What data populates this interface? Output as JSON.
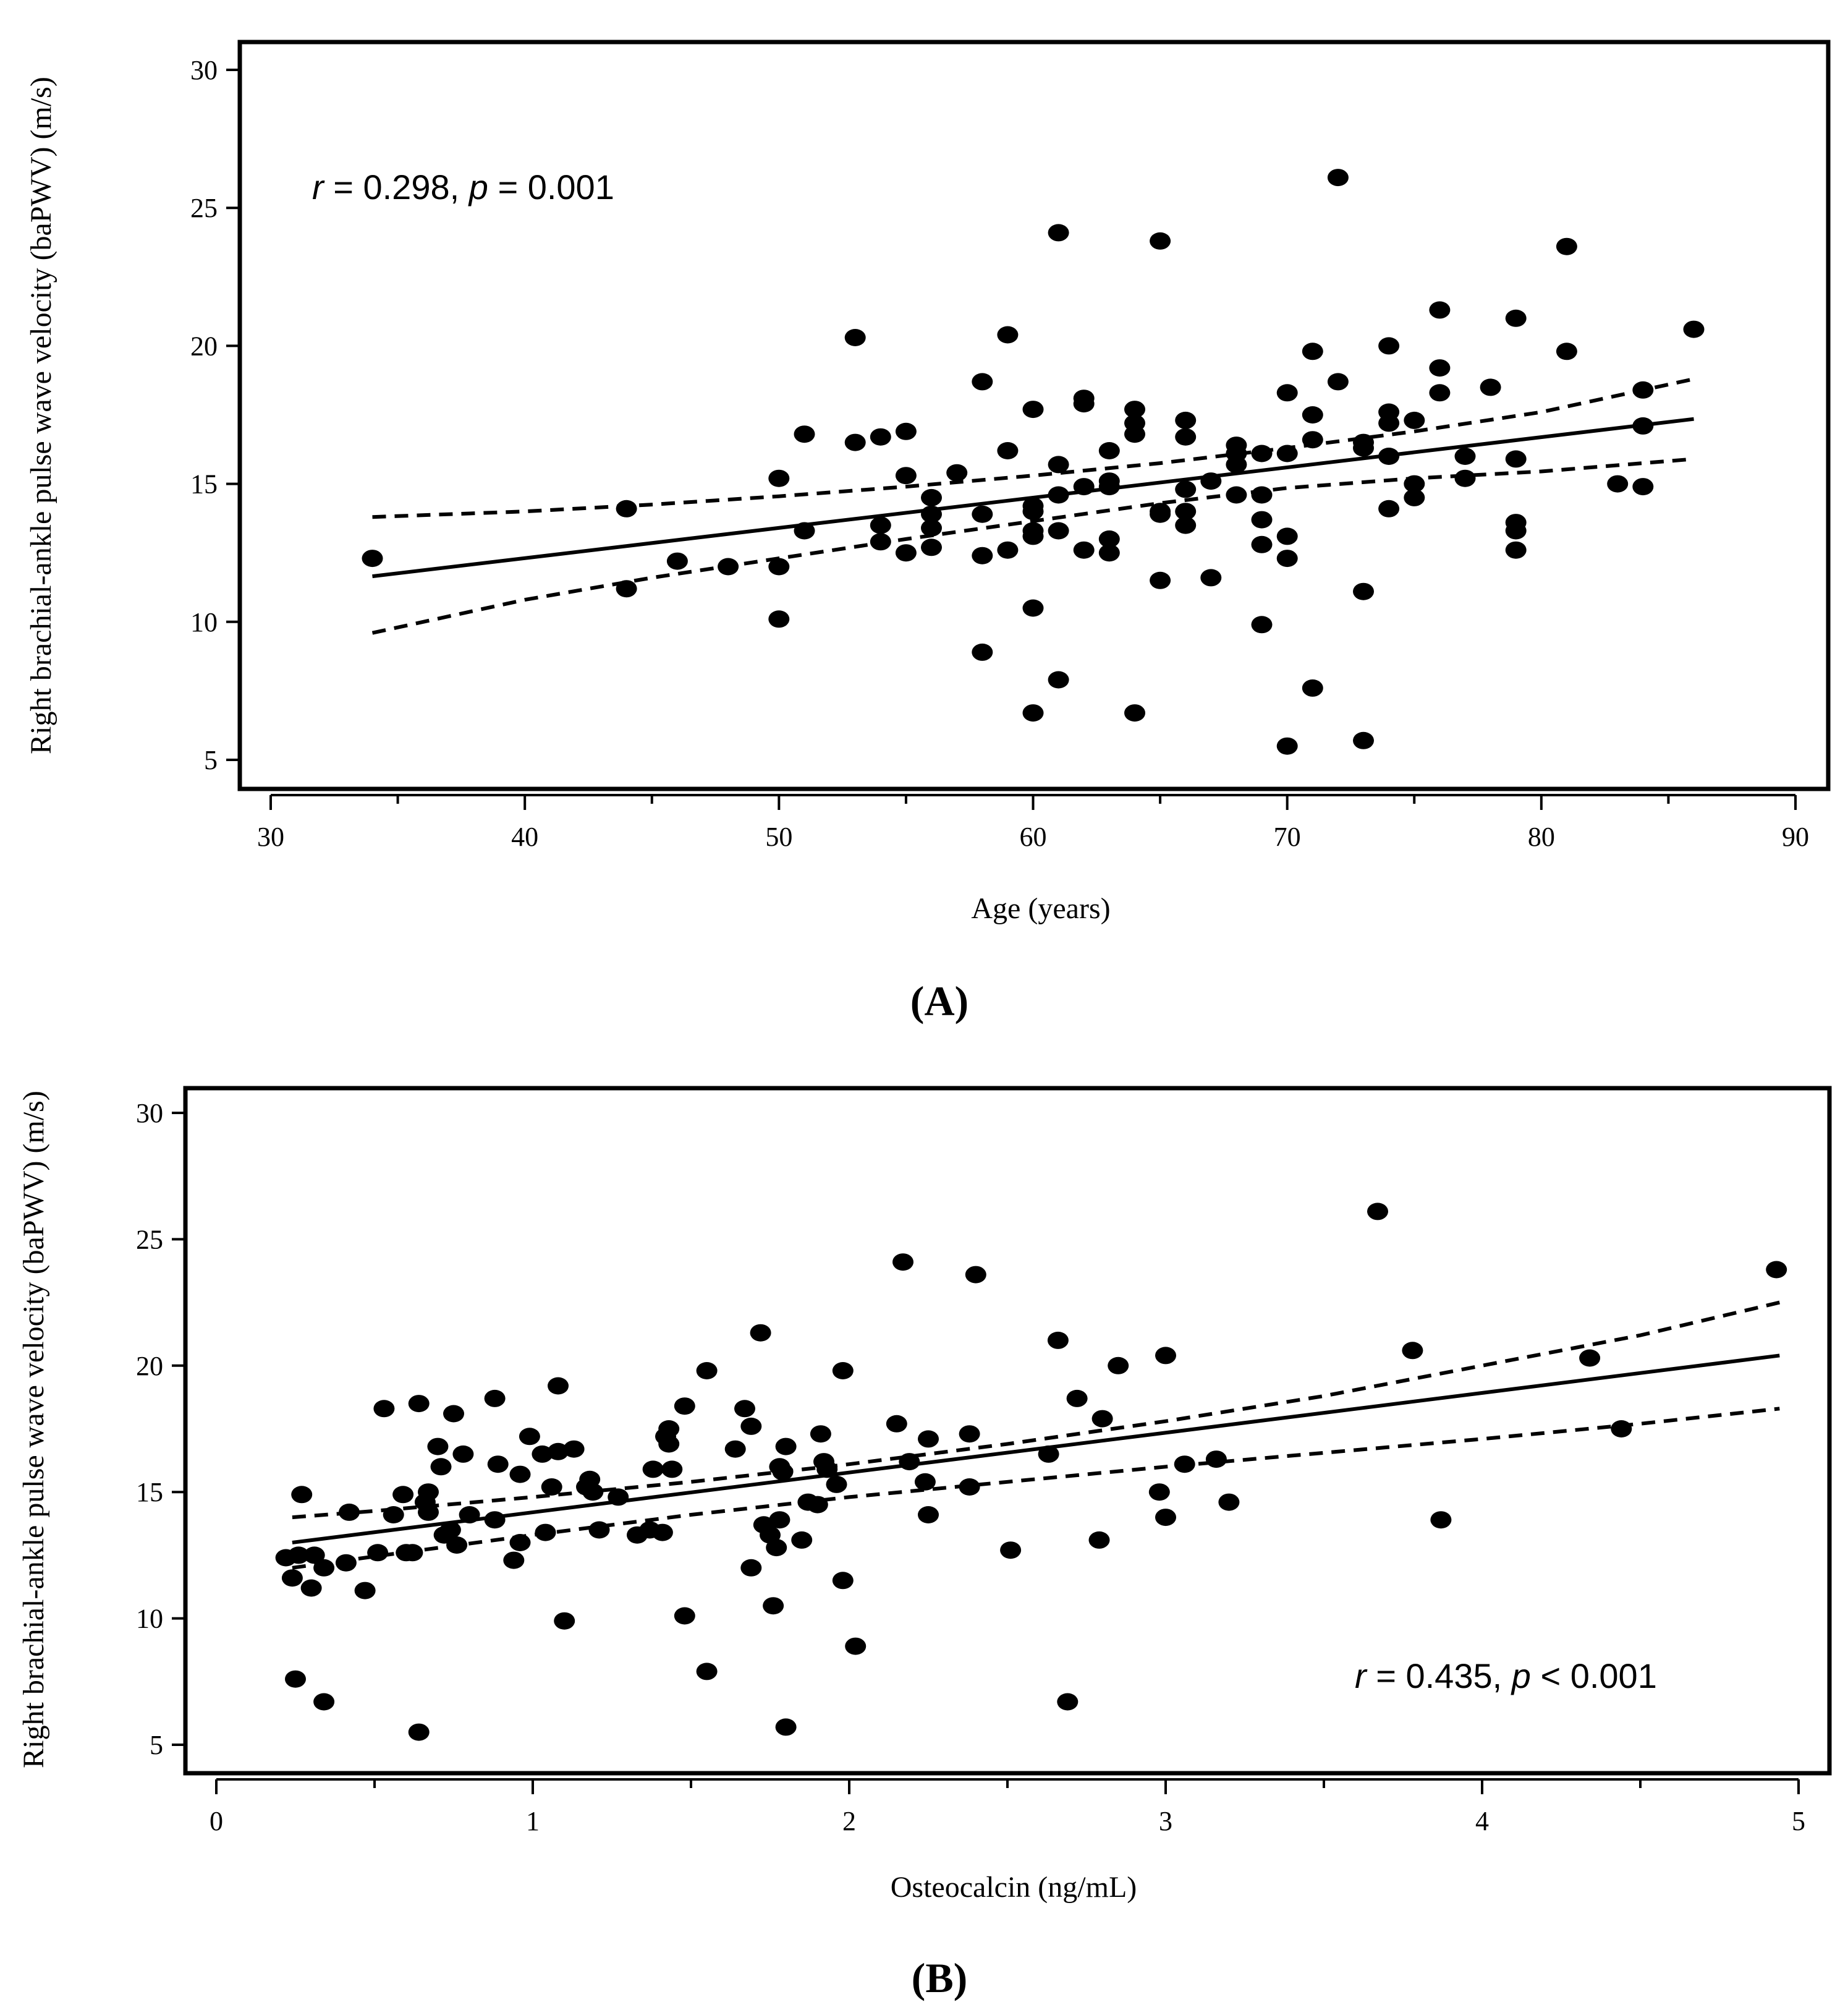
{
  "chart_data": [
    {
      "panel_label": "(A)",
      "type": "scatter",
      "title": "",
      "xlabel": "Age (years)",
      "ylabel": "Right brachial-ankle pulse wave velocity (baPWV) (m/s)",
      "xlim": [
        29,
        91
      ],
      "ylim": [
        4,
        31
      ],
      "xticks": [
        30,
        40,
        50,
        60,
        70,
        80,
        90
      ],
      "xticks_minor": [
        35,
        45,
        55,
        65,
        75,
        85
      ],
      "yticks": [
        5,
        10,
        15,
        20,
        25,
        30
      ],
      "grid": false,
      "annotation": {
        "r_symbol": "r",
        "r_text": " = 0.298, ",
        "p_symbol": "p",
        "p_text": " = 0.001",
        "placement": "top-left"
      },
      "regression": {
        "x": [
          34,
          86
        ],
        "y": [
          11.65,
          17.35
        ]
      },
      "ci_upper": {
        "x": [
          34,
          40,
          45,
          50,
          55,
          60,
          65,
          70,
          75,
          80,
          86
        ],
        "y": [
          13.8,
          14.0,
          14.25,
          14.55,
          14.9,
          15.3,
          15.75,
          16.3,
          16.9,
          17.6,
          18.8
        ]
      },
      "ci_lower": {
        "x": [
          34,
          40,
          45,
          50,
          55,
          60,
          65,
          70,
          75,
          80,
          86
        ],
        "y": [
          9.6,
          10.8,
          11.6,
          12.3,
          13.0,
          13.65,
          14.3,
          14.85,
          15.2,
          15.45,
          15.9
        ]
      },
      "points": [
        [
          34,
          12.3
        ],
        [
          44,
          14.1
        ],
        [
          44,
          11.2
        ],
        [
          46,
          12.2
        ],
        [
          48,
          12.0
        ],
        [
          50,
          15.2
        ],
        [
          50,
          12.0
        ],
        [
          50,
          10.1
        ],
        [
          51,
          16.8
        ],
        [
          51,
          13.3
        ],
        [
          53,
          20.3
        ],
        [
          53,
          16.5
        ],
        [
          54,
          16.7
        ],
        [
          54,
          13.5
        ],
        [
          54,
          12.9
        ],
        [
          55,
          16.9
        ],
        [
          55,
          15.3
        ],
        [
          55,
          12.5
        ],
        [
          56,
          14.5
        ],
        [
          56,
          13.9
        ],
        [
          56,
          13.4
        ],
        [
          56,
          12.7
        ],
        [
          57,
          15.4
        ],
        [
          58,
          18.7
        ],
        [
          58,
          13.9
        ],
        [
          58,
          12.4
        ],
        [
          58,
          8.9
        ],
        [
          59,
          20.4
        ],
        [
          59,
          16.2
        ],
        [
          59,
          12.6
        ],
        [
          60,
          17.7
        ],
        [
          60,
          14.2
        ],
        [
          60,
          14.0
        ],
        [
          60,
          13.3
        ],
        [
          60,
          13.1
        ],
        [
          60,
          10.5
        ],
        [
          60,
          6.7
        ],
        [
          61,
          24.1
        ],
        [
          61,
          15.7
        ],
        [
          61,
          14.6
        ],
        [
          61,
          13.3
        ],
        [
          61,
          7.9
        ],
        [
          62,
          18.1
        ],
        [
          62,
          17.9
        ],
        [
          62,
          14.9
        ],
        [
          62,
          12.6
        ],
        [
          63,
          16.2
        ],
        [
          63,
          15.1
        ],
        [
          63,
          14.9
        ],
        [
          63,
          13.0
        ],
        [
          63,
          12.5
        ],
        [
          64,
          17.7
        ],
        [
          64,
          17.2
        ],
        [
          64,
          16.8
        ],
        [
          64,
          6.7
        ],
        [
          65,
          23.8
        ],
        [
          65,
          14.0
        ],
        [
          65,
          13.9
        ],
        [
          65,
          11.5
        ],
        [
          66,
          17.3
        ],
        [
          66,
          16.7
        ],
        [
          66,
          14.8
        ],
        [
          66,
          14.0
        ],
        [
          66,
          13.5
        ],
        [
          67,
          15.1
        ],
        [
          67,
          11.6
        ],
        [
          68,
          16.4
        ],
        [
          68,
          16.1
        ],
        [
          68,
          15.7
        ],
        [
          68,
          14.6
        ],
        [
          69,
          16.1
        ],
        [
          69,
          14.6
        ],
        [
          69,
          13.7
        ],
        [
          69,
          12.8
        ],
        [
          69,
          9.9
        ],
        [
          70,
          18.3
        ],
        [
          70,
          16.1
        ],
        [
          70,
          13.1
        ],
        [
          70,
          12.3
        ],
        [
          70,
          5.5
        ],
        [
          71,
          19.8
        ],
        [
          71,
          17.5
        ],
        [
          71,
          16.6
        ],
        [
          71,
          7.6
        ],
        [
          72,
          26.1
        ],
        [
          72,
          18.7
        ],
        [
          73,
          16.5
        ],
        [
          73,
          16.3
        ],
        [
          73,
          11.1
        ],
        [
          73,
          5.7
        ],
        [
          74,
          20.0
        ],
        [
          74,
          17.6
        ],
        [
          74,
          17.2
        ],
        [
          74,
          16.0
        ],
        [
          74,
          14.1
        ],
        [
          75,
          17.3
        ],
        [
          75,
          15.0
        ],
        [
          75,
          14.5
        ],
        [
          76,
          21.3
        ],
        [
          76,
          19.2
        ],
        [
          76,
          18.3
        ],
        [
          77,
          16.0
        ],
        [
          77,
          15.2
        ],
        [
          78,
          18.5
        ],
        [
          79,
          21.0
        ],
        [
          79,
          15.9
        ],
        [
          79,
          13.6
        ],
        [
          79,
          13.3
        ],
        [
          79,
          12.6
        ],
        [
          81,
          23.6
        ],
        [
          81,
          19.8
        ],
        [
          83,
          15.0
        ],
        [
          84,
          18.4
        ],
        [
          84,
          17.1
        ],
        [
          84,
          14.9
        ],
        [
          86,
          20.6
        ]
      ]
    },
    {
      "panel_label": "(B)",
      "type": "scatter",
      "title": "",
      "xlabel": "Osteocalcin (ng/mL)",
      "ylabel": "Right brachial-ankle pulse wave velocity (baPWV) (m/s)",
      "xlim": [
        -0.1,
        5.1
      ],
      "ylim": [
        4,
        31
      ],
      "xticks": [
        0,
        1,
        2,
        3,
        4,
        5
      ],
      "xticks_minor": [
        0.5,
        1.5,
        2.5,
        3.5,
        4.5
      ],
      "yticks": [
        5,
        10,
        15,
        20,
        25,
        30
      ],
      "grid": false,
      "annotation": {
        "r_symbol": "r",
        "r_text": " = 0.435, ",
        "p_symbol": "p",
        "p_text": " < 0.001",
        "placement": "bottom-right"
      },
      "regression": {
        "x": [
          0.24,
          4.94
        ],
        "y": [
          13.0,
          20.4
        ]
      },
      "ci_upper": {
        "x": [
          0.24,
          0.5,
          1.0,
          1.5,
          2.0,
          2.5,
          3.0,
          3.5,
          4.0,
          4.5,
          4.94
        ],
        "y": [
          14.0,
          14.25,
          14.8,
          15.4,
          16.1,
          16.9,
          17.8,
          18.8,
          20.0,
          21.2,
          22.5
        ]
      },
      "ci_lower": {
        "x": [
          0.24,
          0.5,
          1.0,
          1.5,
          2.0,
          2.5,
          3.0,
          3.5,
          4.0,
          4.5,
          4.94
        ],
        "y": [
          12.0,
          12.45,
          13.3,
          14.1,
          14.8,
          15.4,
          16.0,
          16.55,
          17.1,
          17.7,
          18.3
        ]
      },
      "points": [
        [
          0.22,
          12.4
        ],
        [
          0.24,
          11.6
        ],
        [
          0.25,
          7.6
        ],
        [
          0.26,
          12.5
        ],
        [
          0.27,
          14.9
        ],
        [
          0.3,
          11.2
        ],
        [
          0.31,
          12.5
        ],
        [
          0.34,
          12.0
        ],
        [
          0.34,
          6.7
        ],
        [
          0.41,
          12.2
        ],
        [
          0.42,
          14.2
        ],
        [
          0.47,
          11.1
        ],
        [
          0.51,
          12.6
        ],
        [
          0.53,
          18.3
        ],
        [
          0.56,
          14.1
        ],
        [
          0.59,
          14.9
        ],
        [
          0.6,
          12.6
        ],
        [
          0.62,
          12.6
        ],
        [
          0.64,
          18.5
        ],
        [
          0.64,
          5.5
        ],
        [
          0.66,
          14.6
        ],
        [
          0.67,
          15.0
        ],
        [
          0.67,
          14.2
        ],
        [
          0.7,
          16.8
        ],
        [
          0.71,
          16.0
        ],
        [
          0.72,
          13.3
        ],
        [
          0.74,
          13.5
        ],
        [
          0.75,
          18.1
        ],
        [
          0.76,
          12.9
        ],
        [
          0.78,
          16.5
        ],
        [
          0.8,
          14.1
        ],
        [
          0.88,
          18.7
        ],
        [
          0.88,
          13.9
        ],
        [
          0.89,
          16.1
        ],
        [
          0.94,
          12.3
        ],
        [
          0.96,
          15.7
        ],
        [
          0.96,
          13.0
        ],
        [
          0.99,
          17.2
        ],
        [
          1.03,
          16.5
        ],
        [
          1.04,
          13.4
        ],
        [
          1.06,
          15.2
        ],
        [
          1.08,
          16.6
        ],
        [
          1.08,
          19.2
        ],
        [
          1.1,
          9.9
        ],
        [
          1.13,
          16.7
        ],
        [
          1.17,
          15.2
        ],
        [
          1.18,
          15.5
        ],
        [
          1.19,
          15.0
        ],
        [
          1.21,
          13.5
        ],
        [
          1.27,
          14.8
        ],
        [
          1.33,
          13.3
        ],
        [
          1.37,
          13.5
        ],
        [
          1.38,
          15.9
        ],
        [
          1.41,
          13.4
        ],
        [
          1.42,
          17.2
        ],
        [
          1.43,
          17.5
        ],
        [
          1.43,
          16.9
        ],
        [
          1.44,
          15.9
        ],
        [
          1.48,
          10.1
        ],
        [
          1.48,
          18.4
        ],
        [
          1.55,
          19.8
        ],
        [
          1.55,
          7.9
        ],
        [
          1.64,
          16.7
        ],
        [
          1.67,
          18.3
        ],
        [
          1.69,
          17.6
        ],
        [
          1.69,
          12.0
        ],
        [
          1.72,
          21.3
        ],
        [
          1.73,
          13.7
        ],
        [
          1.75,
          13.3
        ],
        [
          1.76,
          10.5
        ],
        [
          1.77,
          12.8
        ],
        [
          1.78,
          16.0
        ],
        [
          1.78,
          13.9
        ],
        [
          1.79,
          15.8
        ],
        [
          1.8,
          16.8
        ],
        [
          1.8,
          5.7
        ],
        [
          1.85,
          13.1
        ],
        [
          1.87,
          14.6
        ],
        [
          1.9,
          14.5
        ],
        [
          1.91,
          17.3
        ],
        [
          1.92,
          16.2
        ],
        [
          1.93,
          15.9
        ],
        [
          1.96,
          15.3
        ],
        [
          1.98,
          19.8
        ],
        [
          1.98,
          11.5
        ],
        [
          2.02,
          8.9
        ],
        [
          2.15,
          17.7
        ],
        [
          2.17,
          24.1
        ],
        [
          2.19,
          16.2
        ],
        [
          2.24,
          15.4
        ],
        [
          2.25,
          17.1
        ],
        [
          2.25,
          14.1
        ],
        [
          2.38,
          17.3
        ],
        [
          2.38,
          15.2
        ],
        [
          2.4,
          23.6
        ],
        [
          2.51,
          12.7
        ],
        [
          2.63,
          16.5
        ],
        [
          2.66,
          21.0
        ],
        [
          2.69,
          6.7
        ],
        [
          2.72,
          18.7
        ],
        [
          2.79,
          13.1
        ],
        [
          2.8,
          17.9
        ],
        [
          2.85,
          20.0
        ],
        [
          2.98,
          15.0
        ],
        [
          3.0,
          20.4
        ],
        [
          3.0,
          14.0
        ],
        [
          3.06,
          16.1
        ],
        [
          3.16,
          16.3
        ],
        [
          3.2,
          14.6
        ],
        [
          3.67,
          26.1
        ],
        [
          3.78,
          20.6
        ],
        [
          3.87,
          13.9
        ],
        [
          4.34,
          20.3
        ],
        [
          4.44,
          17.5
        ],
        [
          4.93,
          23.8
        ]
      ]
    }
  ]
}
